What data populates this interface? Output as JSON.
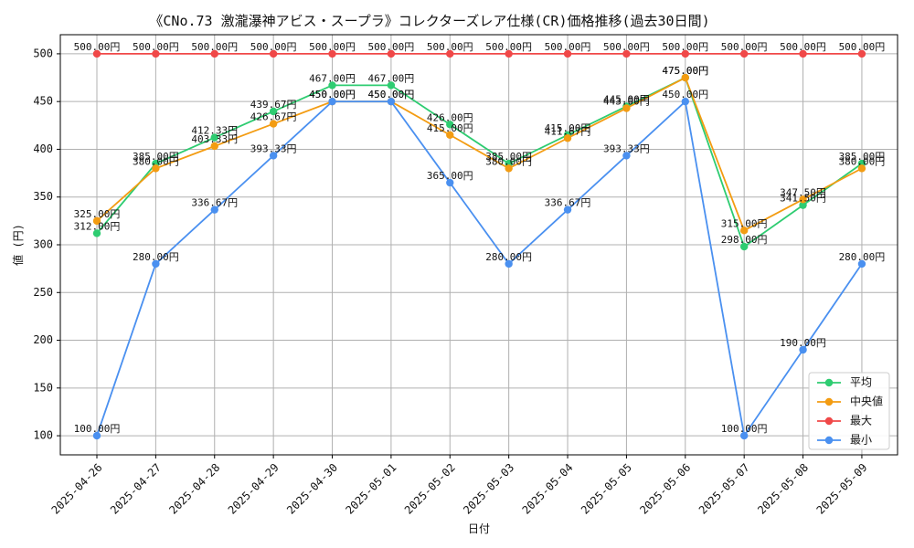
{
  "chart_data": {
    "type": "line",
    "title": "《CNo.73 激瀧瀑神アビス・スープラ》コレクターズレア仕様(CR)価格推移(過去30日間)",
    "xlabel": "日付",
    "ylabel": "値 (円)",
    "x": [
      "2025-04-26",
      "2025-04-27",
      "2025-04-28",
      "2025-04-29",
      "2025-04-30",
      "2025-05-01",
      "2025-05-02",
      "2025-05-03",
      "2025-05-04",
      "2025-05-05",
      "2025-05-06",
      "2025-05-07",
      "2025-05-08",
      "2025-05-09"
    ],
    "yticks": [
      100,
      150,
      200,
      250,
      300,
      350,
      400,
      450,
      500
    ],
    "ylim": [
      80,
      520
    ],
    "grid": true,
    "legend_position": "bottom-right",
    "label_suffix": "円",
    "series": [
      {
        "name": "平均",
        "color": "#2ecc71",
        "values": [
          312.0,
          385.0,
          412.33,
          439.67,
          467.0,
          467.0,
          426.0,
          385.0,
          415.0,
          445.0,
          475.0,
          298.0,
          341.5,
          385.0
        ]
      },
      {
        "name": "中央値",
        "color": "#f39c12",
        "values": [
          325.0,
          380.0,
          403.33,
          426.67,
          450.0,
          450.0,
          415.0,
          380.0,
          411.67,
          443.0,
          475.0,
          315.0,
          347.5,
          380.0
        ]
      },
      {
        "name": "最大",
        "color": "#f04848",
        "values": [
          500.0,
          500.0,
          500.0,
          500.0,
          500.0,
          500.0,
          500.0,
          500.0,
          500.0,
          500.0,
          500.0,
          500.0,
          500.0,
          500.0
        ]
      },
      {
        "name": "最小",
        "color": "#4a90f0",
        "values": [
          100.0,
          280.0,
          336.67,
          393.33,
          450.0,
          450.0,
          365.0,
          280.0,
          336.67,
          393.33,
          450.0,
          100.0,
          190.0,
          280.0
        ]
      }
    ]
  }
}
